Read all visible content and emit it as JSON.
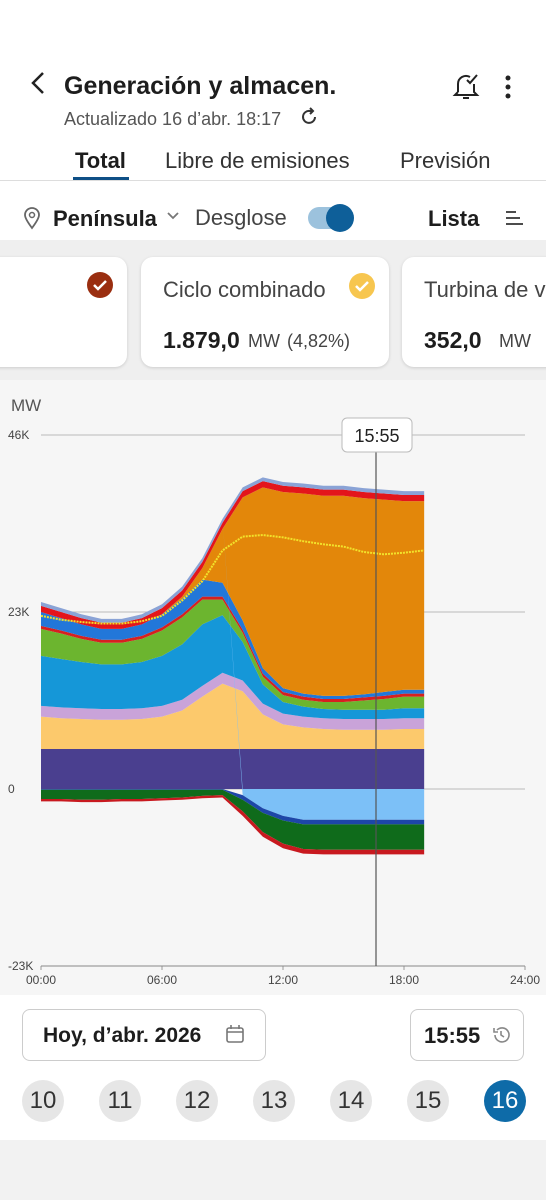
{
  "header": {
    "title": "Generación y almacen.",
    "updated": "Actualizado 16 d’abr. 18:17"
  },
  "tabs": [
    "Total",
    "Libre de emisiones",
    "Previsión"
  ],
  "filters": {
    "region": "Península",
    "breakdown": "Desglose",
    "list": "Lista"
  },
  "cards": [
    {
      "name": "Ciclo combinado",
      "value": "1.879,0",
      "unit": "MW",
      "share": "(4,82%)"
    },
    {
      "name": "Turbina de vapor",
      "value": "352,0",
      "unit": "MW"
    }
  ],
  "chart": {
    "type": "area",
    "y_label": "MW",
    "cursor_label": "15:55",
    "x": [
      0,
      1,
      2,
      3,
      4,
      5,
      6,
      7,
      8,
      9,
      10,
      11,
      12,
      13,
      14,
      15,
      16,
      17,
      18,
      19
    ],
    "xlim": [
      0,
      24
    ],
    "xticks": [
      {
        "value": 0,
        "label": "00:00"
      },
      {
        "value": 6,
        "label": "06:00"
      },
      {
        "value": 12,
        "label": "12:00"
      },
      {
        "value": 18,
        "label": "18:00"
      },
      {
        "value": 24,
        "label": "24:00"
      }
    ],
    "ylim": [
      -23000,
      46000
    ],
    "yticks": [
      {
        "value": -23000,
        "label": "-23K"
      },
      0,
      {
        "value": 23000,
        "label": "23K"
      },
      {
        "value": 46000,
        "label": "46K"
      }
    ],
    "grid": true,
    "series": [
      {
        "color": "#4a3f8f",
        "values": [
          5200,
          5200,
          5200,
          5200,
          5200,
          5200,
          5200,
          5200,
          5200,
          5200,
          5200,
          5200,
          5200,
          5200,
          5200,
          5200,
          5200,
          5200,
          5200,
          5200
        ]
      },
      {
        "color": "#fcc96c",
        "values": [
          4200,
          4000,
          3900,
          3800,
          3800,
          3900,
          4200,
          5000,
          6800,
          8500,
          7500,
          4500,
          3200,
          2800,
          2600,
          2500,
          2500,
          2500,
          2600,
          2600
        ]
      },
      {
        "color": "#c9a3d9",
        "values": [
          1400,
          1400,
          1400,
          1400,
          1400,
          1400,
          1400,
          1400,
          1400,
          1400,
          1400,
          1400,
          1400,
          1400,
          1400,
          1400,
          1400,
          1400,
          1400,
          1400
        ]
      },
      {
        "color": "#1597d8",
        "values": [
          6500,
          6300,
          6000,
          5800,
          5800,
          6000,
          6500,
          7200,
          8000,
          7500,
          5000,
          2500,
          1500,
          1300,
          1200,
          1200,
          1200,
          1200,
          1300,
          1300
        ]
      },
      {
        "color": "#6cb52f",
        "values": [
          3500,
          3300,
          3000,
          2800,
          2800,
          3000,
          3300,
          3500,
          3200,
          2000,
          1200,
          1000,
          900,
          900,
          900,
          1000,
          1200,
          1400,
          1500,
          1500
        ]
      },
      {
        "color": "#d62020",
        "values": [
          400,
          400,
          400,
          400,
          400,
          400,
          400,
          400,
          400,
          400,
          400,
          400,
          400,
          400,
          400,
          400,
          400,
          400,
          400,
          400
        ]
      },
      {
        "color": "#2277d9",
        "values": [
          1800,
          1600,
          1500,
          1400,
          1400,
          1500,
          1700,
          2000,
          2200,
          1800,
          1200,
          700,
          500,
          400,
          400,
          400,
          400,
          500,
          500,
          500
        ]
      },
      {
        "color": "#e3870a",
        "values": [
          0,
          0,
          0,
          0,
          0,
          0,
          0,
          300,
          1500,
          7000,
          16000,
          23500,
          25500,
          26000,
          26000,
          26000,
          25500,
          25000,
          24500,
          24500
        ]
      },
      {
        "color": "#e3151b",
        "values": [
          800,
          800,
          800,
          800,
          800,
          800,
          800,
          800,
          800,
          800,
          800,
          800,
          800,
          800,
          800,
          800,
          800,
          800,
          800,
          800
        ]
      },
      {
        "color": "#8aa3d6",
        "values": [
          500,
          500,
          500,
          500,
          500,
          500,
          500,
          500,
          500,
          500,
          500,
          500,
          500,
          500,
          500,
          500,
          500,
          500,
          500,
          500
        ]
      },
      {
        "color": "#7cc0f7",
        "values": [
          0,
          0,
          0,
          0,
          0,
          0,
          0,
          0,
          0,
          0,
          -800,
          -2500,
          -3500,
          -4000,
          -4000,
          -4000,
          -4000,
          -4000,
          -4000,
          -4000
        ]
      },
      {
        "color": "#1d46a8",
        "values": [
          -100,
          -100,
          -100,
          -100,
          -100,
          -100,
          -100,
          -100,
          -100,
          -100,
          -600,
          -600,
          -600,
          -600,
          -600,
          -600,
          -600,
          -600,
          -600,
          -600
        ]
      },
      {
        "color": "#0f6b1b",
        "values": [
          -1200,
          -1200,
          -1300,
          -1300,
          -1200,
          -1200,
          -1100,
          -1000,
          -800,
          -700,
          -1500,
          -2500,
          -3000,
          -3200,
          -3300,
          -3300,
          -3300,
          -3300,
          -3300,
          -3300
        ]
      },
      {
        "color": "#c8191f",
        "values": [
          -300,
          -300,
          -300,
          -300,
          -300,
          -300,
          -300,
          -300,
          -300,
          -300,
          -600,
          -600,
          -600,
          -600,
          -600,
          -600,
          -600,
          -600,
          -600,
          -600
        ]
      },
      {
        "type": "line",
        "color": "#f2e22a",
        "values": [
          22500,
          22000,
          21700,
          21500,
          21500,
          21800,
          22500,
          24500,
          27000,
          31000,
          32800,
          33000,
          32700,
          32200,
          31800,
          31500,
          30800,
          30500,
          30700,
          31000
        ]
      }
    ]
  },
  "date": {
    "label": "Hoy, d’abr. 2026",
    "time": "15:55"
  },
  "days": [
    "10",
    "11",
    "12",
    "13",
    "14",
    "15",
    "16"
  ]
}
